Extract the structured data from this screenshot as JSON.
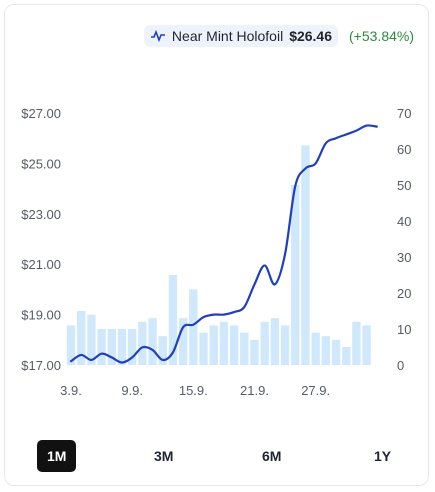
{
  "legend": {
    "icon": "line-chart-icon",
    "series_name": "Near Mint Holofoil",
    "price": "$26.46",
    "change": "(+53.84%)",
    "line_color": "#1f3fbf",
    "bar_color": "#cfe8fb",
    "change_color": "#2e8b3e"
  },
  "range_selector": {
    "options": [
      "1M",
      "3M",
      "6M",
      "1Y"
    ],
    "selected": "1M"
  },
  "chart_data": {
    "type": "line",
    "left_axis": {
      "range": [
        17.0,
        27.0
      ],
      "ticks": [
        "$27.00",
        "$25.00",
        "$23.00",
        "$21.00",
        "$19.00",
        "$17.00"
      ]
    },
    "right_axis": {
      "range": [
        0,
        70
      ],
      "ticks": [
        "70",
        "60",
        "50",
        "40",
        "30",
        "20",
        "10",
        "0"
      ]
    },
    "x_ticks": [
      {
        "label": "3.9.",
        "day": 3
      },
      {
        "label": "9.9.",
        "day": 9
      },
      {
        "label": "15.9.",
        "day": 15
      },
      {
        "label": "21.9.",
        "day": 21
      },
      {
        "label": "27.9.",
        "day": 27
      }
    ],
    "x_range": [
      3,
      34
    ],
    "bars": {
      "days": [
        3,
        4,
        5,
        6,
        7,
        8,
        9,
        10,
        11,
        12,
        13,
        14,
        15,
        16,
        17,
        18,
        19,
        20,
        21,
        22,
        23,
        24,
        25,
        26,
        27,
        28,
        29,
        30,
        31,
        32,
        33
      ],
      "values": [
        11,
        15,
        14,
        10,
        10,
        10,
        10,
        12,
        13,
        8,
        25,
        13,
        21,
        9,
        11,
        12,
        11,
        9,
        7,
        12,
        13,
        11,
        50,
        61,
        9,
        8,
        7,
        5,
        12,
        11,
        0
      ]
    },
    "price_line": {
      "days": [
        3,
        4,
        5,
        6,
        7,
        8,
        9,
        10,
        11,
        12,
        13,
        14,
        15,
        16,
        17,
        18,
        19,
        20,
        21,
        22,
        23,
        24,
        25,
        26,
        27,
        28,
        29,
        30,
        31,
        32,
        33
      ],
      "values": [
        17.15,
        17.4,
        17.2,
        17.45,
        17.3,
        17.1,
        17.3,
        17.7,
        17.6,
        17.2,
        17.5,
        18.5,
        18.6,
        18.9,
        19.0,
        19.0,
        19.1,
        19.3,
        20.2,
        20.95,
        20.2,
        21.4,
        24.1,
        24.8,
        25.0,
        25.8,
        26.0,
        26.15,
        26.3,
        26.5,
        26.46
      ]
    }
  }
}
